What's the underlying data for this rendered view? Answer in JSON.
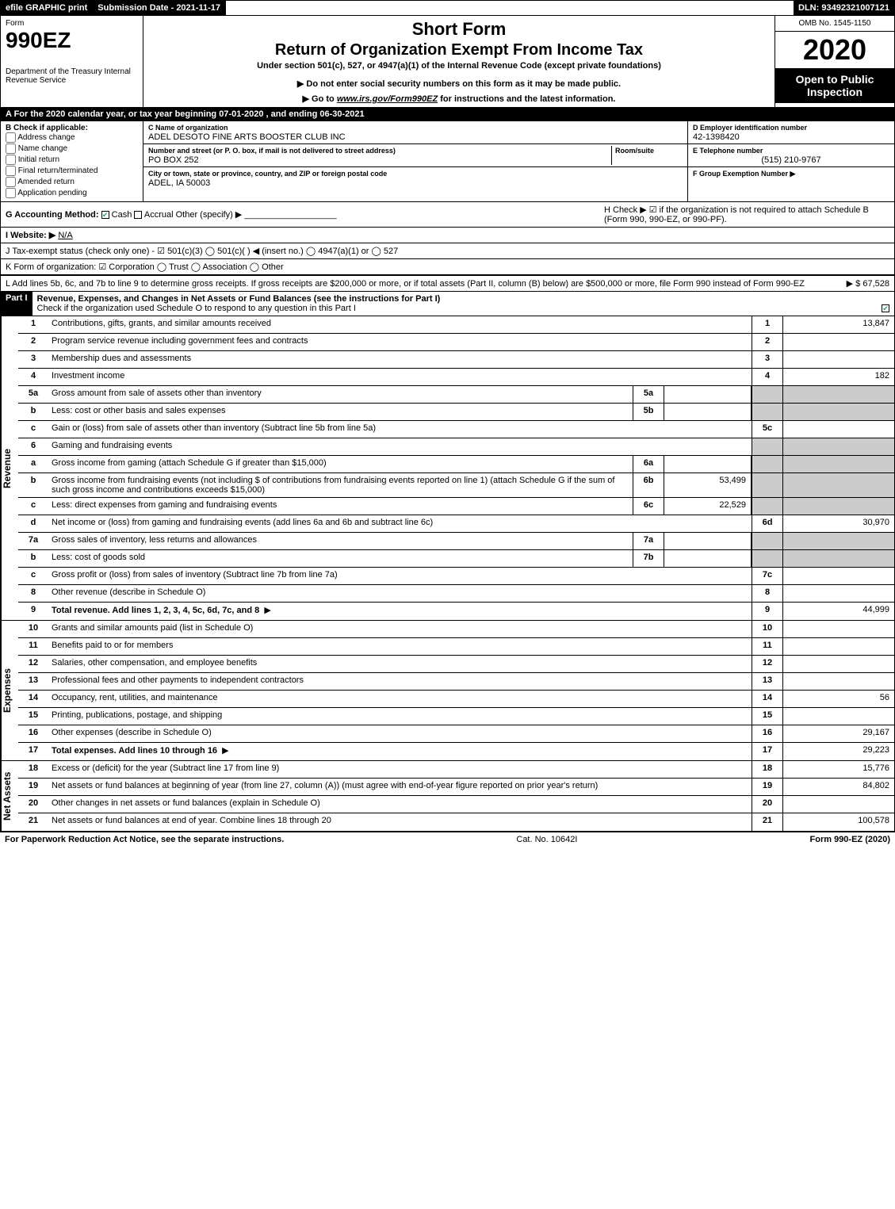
{
  "topbar": {
    "efile": "efile GRAPHIC print",
    "sub_label": "Submission Date - 2021-11-17",
    "dln": "DLN: 93492321007121"
  },
  "header": {
    "form_word": "Form",
    "form_num": "990EZ",
    "dept": "Department of the Treasury Internal Revenue Service",
    "short": "Short Form",
    "title2": "Return of Organization Exempt From Income Tax",
    "sub": "Under section 501(c), 527, or 4947(a)(1) of the Internal Revenue Code (except private foundations)",
    "warn": "▶ Do not enter social security numbers on this form as it may be made public.",
    "link_pre": "▶ Go to ",
    "link_url": "www.irs.gov/Form990EZ",
    "link_post": " for instructions and the latest information.",
    "omb": "OMB No. 1545-1150",
    "year": "2020",
    "open": "Open to Public Inspection"
  },
  "row_a": "A  For the 2020 calendar year, or tax year beginning 07-01-2020 , and ending 06-30-2021",
  "box_b": {
    "title": "B  Check if applicable:",
    "items": [
      "Address change",
      "Name change",
      "Initial return",
      "Final return/terminated",
      "Amended return",
      "Application pending"
    ]
  },
  "box_c": {
    "name_label": "C Name of organization",
    "name": "ADEL DESOTO FINE ARTS BOOSTER CLUB INC",
    "street_label": "Number and street (or P. O. box, if mail is not delivered to street address)",
    "room_label": "Room/suite",
    "street": "PO BOX 252",
    "city_label": "City or town, state or province, country, and ZIP or foreign postal code",
    "city": "ADEL, IA  50003"
  },
  "box_d": {
    "ein_label": "D Employer identification number",
    "ein": "42-1398420",
    "tel_label": "E Telephone number",
    "tel": "(515) 210-9767",
    "grp_label": "F Group Exemption Number ▶"
  },
  "line_g": {
    "label": "G Accounting Method:",
    "cash": "Cash",
    "accrual": "Accrual",
    "other": "Other (specify) ▶"
  },
  "line_h": "H  Check ▶  ☑  if the organization is not required to attach Schedule B (Form 990, 990-EZ, or 990-PF).",
  "line_i": {
    "label": "I Website: ▶",
    "val": "N/A"
  },
  "line_j": "J Tax-exempt status (check only one) -  ☑ 501(c)(3)  ◯ 501(c)(  ) ◀ (insert no.)  ◯ 4947(a)(1) or  ◯ 527",
  "line_k": "K Form of organization:   ☑ Corporation   ◯ Trust   ◯ Association   ◯ Other",
  "line_l": {
    "text": "L Add lines 5b, 6c, and 7b to line 9 to determine gross receipts. If gross receipts are $200,000 or more, or if total assets (Part II, column (B) below) are $500,000 or more, file Form 990 instead of Form 990-EZ",
    "amount": "▶ $ 67,528"
  },
  "part1": {
    "label": "Part I",
    "title": "Revenue, Expenses, and Changes in Net Assets or Fund Balances (see the instructions for Part I)",
    "sub": "Check if the organization used Schedule O to respond to any question in this Part I"
  },
  "sections": {
    "revenue": "Revenue",
    "expenses": "Expenses",
    "netassets": "Net Assets"
  },
  "rows": {
    "r1": {
      "n": "1",
      "d": "Contributions, gifts, grants, and similar amounts received",
      "rn": "1",
      "rv": "13,847"
    },
    "r2": {
      "n": "2",
      "d": "Program service revenue including government fees and contracts",
      "rn": "2",
      "rv": ""
    },
    "r3": {
      "n": "3",
      "d": "Membership dues and assessments",
      "rn": "3",
      "rv": ""
    },
    "r4": {
      "n": "4",
      "d": "Investment income",
      "rn": "4",
      "rv": "182"
    },
    "r5a": {
      "n": "5a",
      "d": "Gross amount from sale of assets other than inventory",
      "sn": "5a",
      "sv": ""
    },
    "r5b": {
      "n": "b",
      "d": "Less: cost or other basis and sales expenses",
      "sn": "5b",
      "sv": ""
    },
    "r5c": {
      "n": "c",
      "d": "Gain or (loss) from sale of assets other than inventory (Subtract line 5b from line 5a)",
      "rn": "5c",
      "rv": ""
    },
    "r6": {
      "n": "6",
      "d": "Gaming and fundraising events"
    },
    "r6a": {
      "n": "a",
      "d": "Gross income from gaming (attach Schedule G if greater than $15,000)",
      "sn": "6a",
      "sv": ""
    },
    "r6b": {
      "n": "b",
      "d": "Gross income from fundraising events (not including $                     of contributions from fundraising events reported on line 1) (attach Schedule G if the sum of such gross income and contributions exceeds $15,000)",
      "sn": "6b",
      "sv": "53,499"
    },
    "r6c": {
      "n": "c",
      "d": "Less: direct expenses from gaming and fundraising events",
      "sn": "6c",
      "sv": "22,529"
    },
    "r6d": {
      "n": "d",
      "d": "Net income or (loss) from gaming and fundraising events (add lines 6a and 6b and subtract line 6c)",
      "rn": "6d",
      "rv": "30,970"
    },
    "r7a": {
      "n": "7a",
      "d": "Gross sales of inventory, less returns and allowances",
      "sn": "7a",
      "sv": ""
    },
    "r7b": {
      "n": "b",
      "d": "Less: cost of goods sold",
      "sn": "7b",
      "sv": ""
    },
    "r7c": {
      "n": "c",
      "d": "Gross profit or (loss) from sales of inventory (Subtract line 7b from line 7a)",
      "rn": "7c",
      "rv": ""
    },
    "r8": {
      "n": "8",
      "d": "Other revenue (describe in Schedule O)",
      "rn": "8",
      "rv": ""
    },
    "r9": {
      "n": "9",
      "d": "Total revenue. Add lines 1, 2, 3, 4, 5c, 6d, 7c, and 8",
      "rn": "9",
      "rv": "44,999",
      "bold": true,
      "arrow": true
    },
    "r10": {
      "n": "10",
      "d": "Grants and similar amounts paid (list in Schedule O)",
      "rn": "10",
      "rv": ""
    },
    "r11": {
      "n": "11",
      "d": "Benefits paid to or for members",
      "rn": "11",
      "rv": ""
    },
    "r12": {
      "n": "12",
      "d": "Salaries, other compensation, and employee benefits",
      "rn": "12",
      "rv": ""
    },
    "r13": {
      "n": "13",
      "d": "Professional fees and other payments to independent contractors",
      "rn": "13",
      "rv": ""
    },
    "r14": {
      "n": "14",
      "d": "Occupancy, rent, utilities, and maintenance",
      "rn": "14",
      "rv": "56"
    },
    "r15": {
      "n": "15",
      "d": "Printing, publications, postage, and shipping",
      "rn": "15",
      "rv": ""
    },
    "r16": {
      "n": "16",
      "d": "Other expenses (describe in Schedule O)",
      "rn": "16",
      "rv": "29,167"
    },
    "r17": {
      "n": "17",
      "d": "Total expenses. Add lines 10 through 16",
      "rn": "17",
      "rv": "29,223",
      "bold": true,
      "arrow": true
    },
    "r18": {
      "n": "18",
      "d": "Excess or (deficit) for the year (Subtract line 17 from line 9)",
      "rn": "18",
      "rv": "15,776"
    },
    "r19": {
      "n": "19",
      "d": "Net assets or fund balances at beginning of year (from line 27, column (A)) (must agree with end-of-year figure reported on prior year's return)",
      "rn": "19",
      "rv": "84,802"
    },
    "r20": {
      "n": "20",
      "d": "Other changes in net assets or fund balances (explain in Schedule O)",
      "rn": "20",
      "rv": ""
    },
    "r21": {
      "n": "21",
      "d": "Net assets or fund balances at end of year. Combine lines 18 through 20",
      "rn": "21",
      "rv": "100,578"
    }
  },
  "footer": {
    "left": "For Paperwork Reduction Act Notice, see the separate instructions.",
    "mid": "Cat. No. 10642I",
    "right": "Form 990-EZ (2020)"
  }
}
